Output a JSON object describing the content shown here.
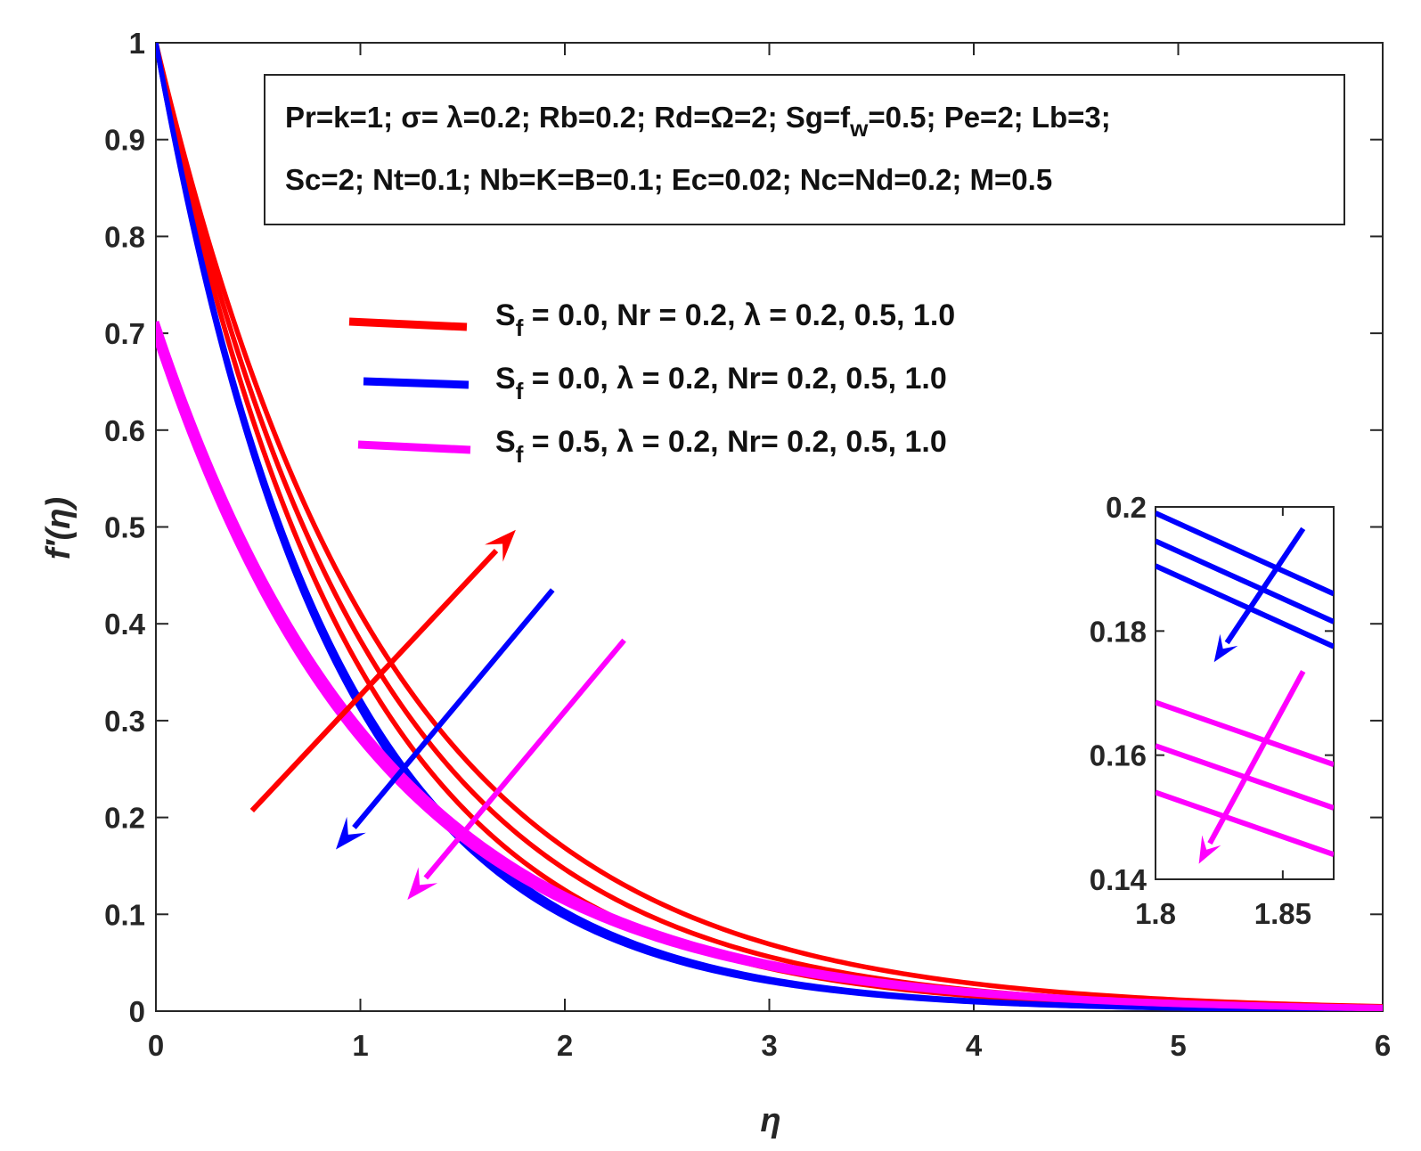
{
  "chart_data": {
    "type": "line",
    "xlabel": "η",
    "ylabel": "f′(η)",
    "xlim": [
      0,
      6
    ],
    "ylim": [
      0,
      1
    ],
    "xticks": [
      "0",
      "1",
      "2",
      "3",
      "4",
      "5",
      "6"
    ],
    "yticks": [
      "0",
      "0.1",
      "0.2",
      "0.3",
      "0.4",
      "0.5",
      "0.6",
      "0.7",
      "0.8",
      "0.9",
      "1"
    ],
    "params_box": {
      "line1": "Pr=k=1; σ= λ=0.2; Rb=0.2; Rd=Ω=2; Sg=f_w=0.5; Pe=2; Lb=3;",
      "line2": "Sc=2; Nt=0.1; Nb=K=B=0.1; Ec=0.02; Nc=Nd=0.2; M=0.5"
    },
    "legend": [
      {
        "label_main": "S",
        "label_sub": "f",
        "label_rest": " = 0.0, Nr = 0.2, λ = 0.2, 0.5, 1.0",
        "color": "#ff0000"
      },
      {
        "label_main": "S",
        "label_sub": "f",
        "label_rest": " = 0.0, λ = 0.2, Nr= 0.2, 0.5, 1.0",
        "color": "#0000ff"
      },
      {
        "label_main": "S",
        "label_sub": "f",
        "label_rest": " = 0.5, λ = 0.2, Nr= 0.2, 0.5, 1.0",
        "color": "#ff00ff"
      }
    ],
    "series": [
      {
        "name": "Sf=0.0, Nr=0.2, λ=0.2",
        "group": "red",
        "f0": 1.0,
        "decay": 1.04
      },
      {
        "name": "Sf=0.0, Nr=0.2, λ=0.5",
        "group": "red",
        "f0": 1.0,
        "decay": 0.96
      },
      {
        "name": "Sf=0.0, Nr=0.2, λ=1.0",
        "group": "red",
        "f0": 1.0,
        "decay": 0.89
      },
      {
        "name": "Sf=0.0, λ=0.2, Nr=0.2",
        "group": "blue",
        "f0": 1.0,
        "decay": 1.135
      },
      {
        "name": "Sf=0.0, λ=0.2, Nr=0.5",
        "group": "blue",
        "f0": 1.0,
        "decay": 1.15
      },
      {
        "name": "Sf=0.0, λ=0.2, Nr=1.0",
        "group": "blue",
        "f0": 1.0,
        "decay": 1.165
      },
      {
        "name": "Sf=0.5, λ=0.2, Nr=0.2",
        "group": "magenta",
        "f0": 0.712,
        "decay": 0.89
      },
      {
        "name": "Sf=0.5, λ=0.2, Nr=0.5",
        "group": "magenta",
        "f0": 0.704,
        "decay": 0.9
      },
      {
        "name": "Sf=0.5, λ=0.2, Nr=1.0",
        "group": "magenta",
        "f0": 0.696,
        "decay": 0.91
      }
    ],
    "arrows": [
      {
        "group": "red",
        "from": [
          0.47,
          0.207
        ],
        "to": [
          1.76,
          0.497
        ]
      },
      {
        "group": "blue",
        "from": [
          1.94,
          0.435
        ],
        "to": [
          0.88,
          0.167
        ]
      },
      {
        "group": "magenta",
        "from": [
          2.29,
          0.383
        ],
        "to": [
          1.23,
          0.115
        ]
      }
    ],
    "inset": {
      "xlim": [
        1.8,
        1.87
      ],
      "ylim": [
        0.14,
        0.2
      ],
      "xticks": [
        "1.8",
        "1.85"
      ],
      "yticks": [
        "0.14",
        "0.16",
        "0.18",
        "0.2"
      ],
      "series": [
        {
          "group": "blue",
          "y0": 0.199,
          "y1": 0.186
        },
        {
          "group": "blue",
          "y0": 0.1945,
          "y1": 0.1815
        },
        {
          "group": "blue",
          "y0": 0.1905,
          "y1": 0.1775
        },
        {
          "group": "magenta",
          "y0": 0.1685,
          "y1": 0.1585
        },
        {
          "group": "magenta",
          "y0": 0.1615,
          "y1": 0.1515
        },
        {
          "group": "magenta",
          "y0": 0.154,
          "y1": 0.144
        }
      ],
      "arrows": [
        {
          "group": "blue",
          "from": [
            1.858,
            0.1965
          ],
          "to": [
            1.823,
            0.175
          ]
        },
        {
          "group": "magenta",
          "from": [
            1.858,
            0.1735
          ],
          "to": [
            1.817,
            0.1425
          ]
        }
      ]
    },
    "colors": {
      "red": "#ff0000",
      "blue": "#0000ff",
      "magenta": "#ff00ff"
    }
  }
}
